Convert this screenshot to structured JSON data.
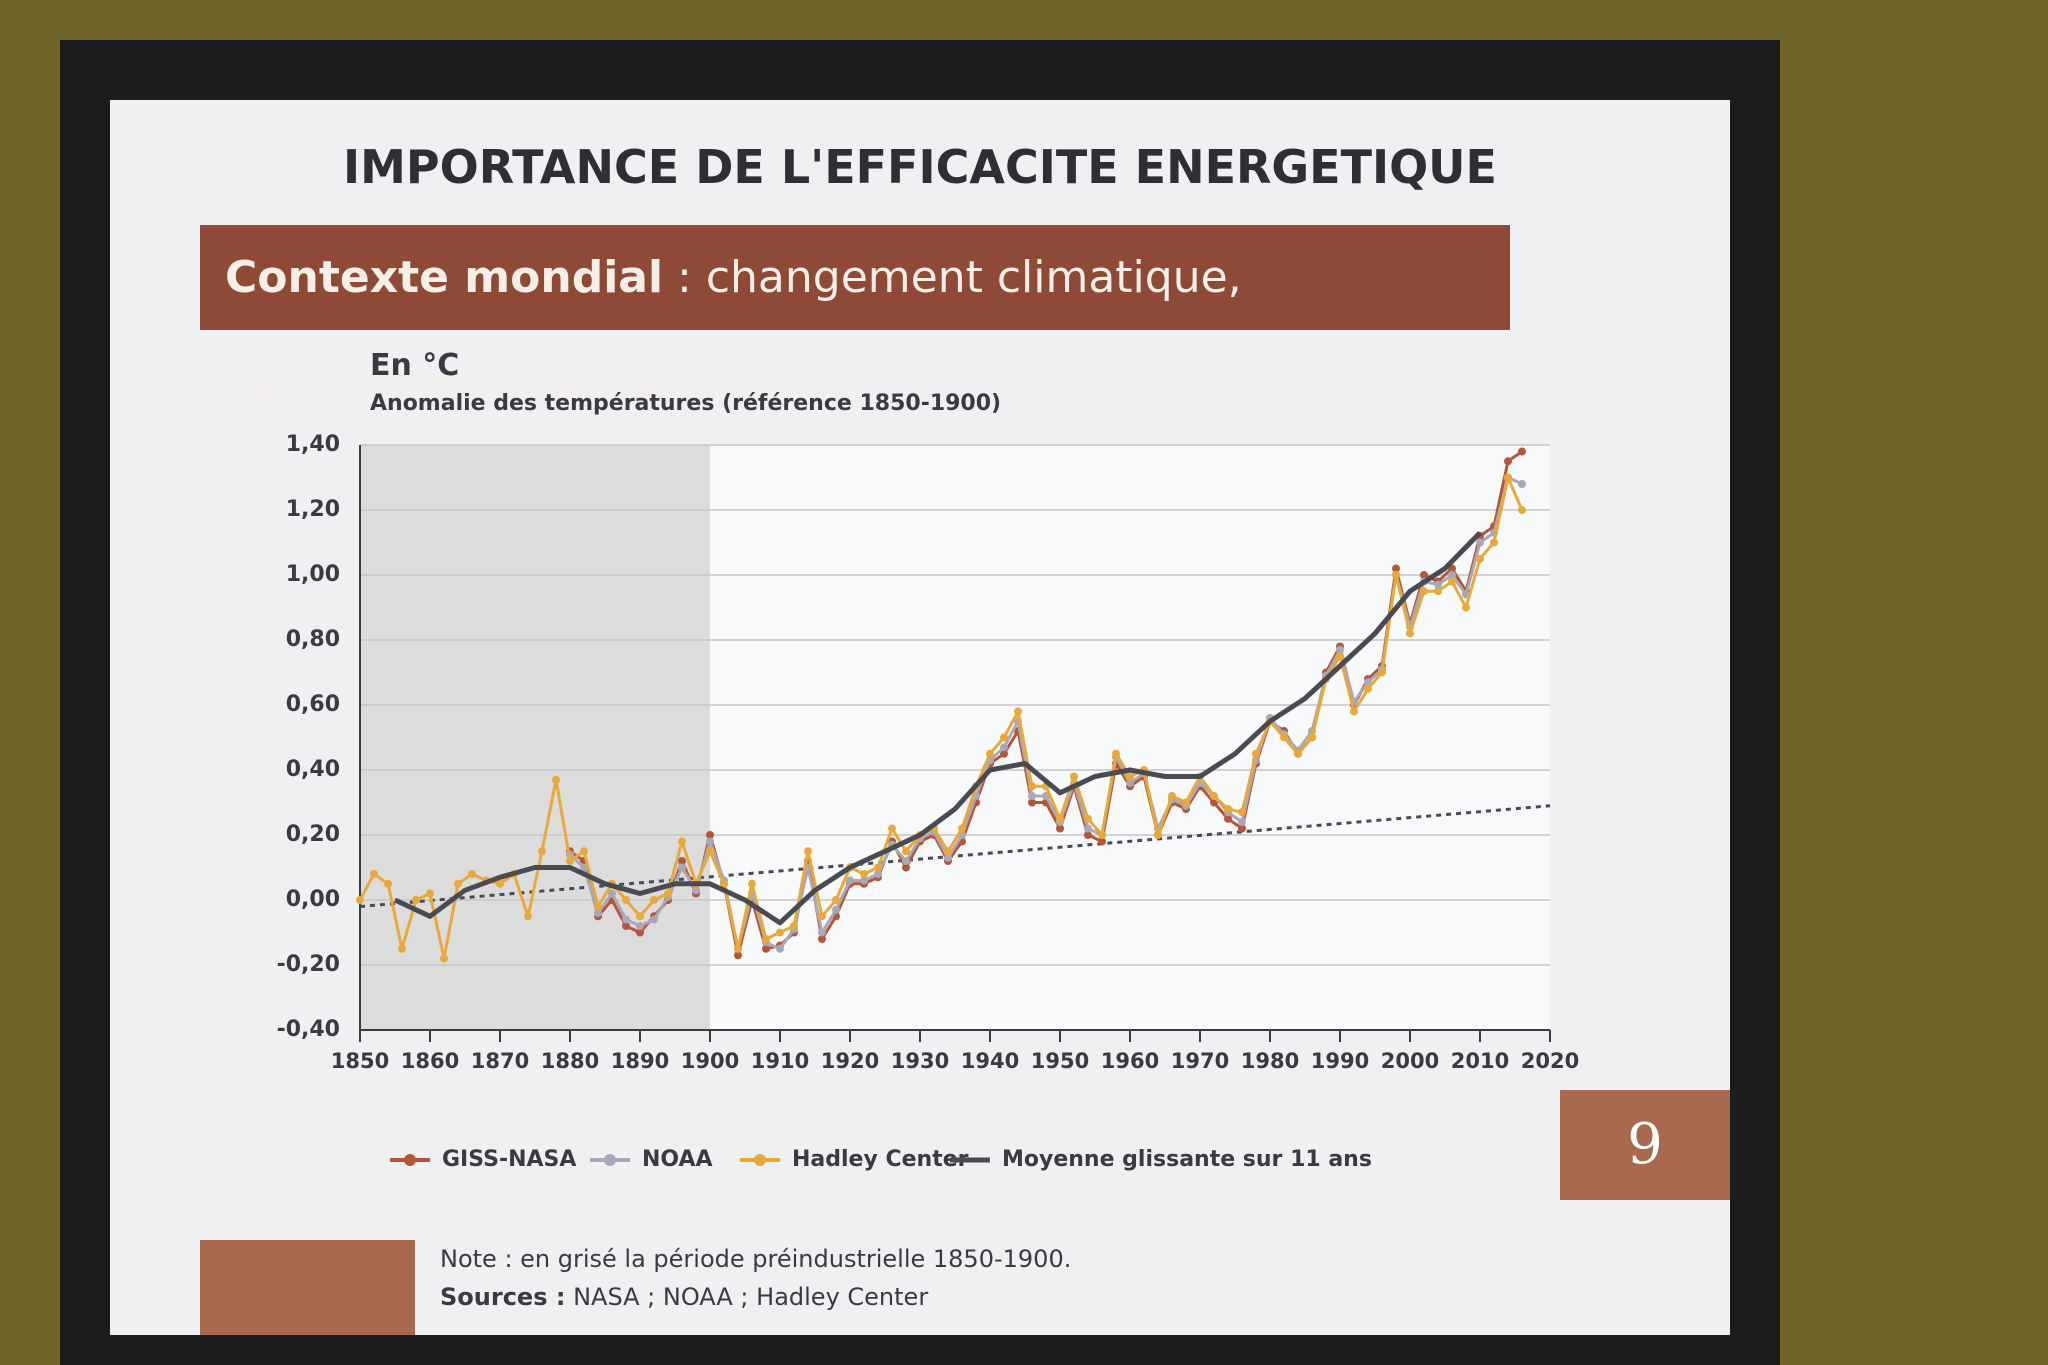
{
  "slide": {
    "title": "IMPORTANCE DE L'EFFICACITE ENERGETIQUE",
    "banner_bold": "Contexte mondial",
    "banner_rest": " : changement climatique, épuisement des ressources",
    "note": "Note : en grisé la période préindustrielle 1850-1900.",
    "sources_bold": "Sources :",
    "sources_rest": " NASA ; NOAA ; Hadley Center",
    "page_number": "9"
  },
  "chart_data": {
    "type": "line",
    "title": "En °C",
    "subtitle": "Anomalie des températures (référence 1850-1900)",
    "xlim": [
      1850,
      2020
    ],
    "xticks": [
      1850,
      1860,
      1870,
      1880,
      1890,
      1900,
      1910,
      1920,
      1930,
      1940,
      1950,
      1960,
      1970,
      1980,
      1990,
      2000,
      2010,
      2020
    ],
    "ylim": [
      -0.4,
      1.4
    ],
    "yticks": [
      {
        "value": -0.4,
        "label": "-0,40"
      },
      {
        "value": -0.2,
        "label": "-0,20"
      },
      {
        "value": 0,
        "label": "0,00"
      },
      {
        "value": 0.2,
        "label": "0,20"
      },
      {
        "value": 0.4,
        "label": "0,40"
      },
      {
        "value": 0.6,
        "label": "0,60"
      },
      {
        "value": 0.8,
        "label": "0,80"
      },
      {
        "value": 1,
        "label": "1,00"
      },
      {
        "value": 1.2,
        "label": "1,20"
      },
      {
        "value": 1.4,
        "label": "1,40"
      }
    ],
    "grid": true,
    "shaded_period": [
      1850,
      1900
    ],
    "shade_color": "#dcdcdc",
    "trend_line": {
      "x": [
        1850,
        2020
      ],
      "values": [
        -0.02,
        0.29
      ],
      "color": "#4a4a52"
    },
    "series": [
      {
        "name": "GISS-NASA",
        "color": "#b5563a",
        "markers": true,
        "x": [
          1880,
          1882,
          1884,
          1886,
          1888,
          1890,
          1892,
          1894,
          1896,
          1898,
          1900,
          1902,
          1904,
          1906,
          1908,
          1910,
          1912,
          1914,
          1916,
          1918,
          1920,
          1922,
          1924,
          1926,
          1928,
          1930,
          1932,
          1934,
          1936,
          1938,
          1940,
          1942,
          1944,
          1946,
          1948,
          1950,
          1952,
          1954,
          1956,
          1958,
          1960,
          1962,
          1964,
          1966,
          1968,
          1970,
          1972,
          1974,
          1976,
          1978,
          1980,
          1982,
          1984,
          1986,
          1988,
          1990,
          1992,
          1994,
          1996,
          1998,
          2000,
          2002,
          2004,
          2006,
          2008,
          2010,
          2012,
          2014,
          2016
        ],
        "values": [
          0.15,
          0.12,
          -0.05,
          0.0,
          -0.08,
          -0.1,
          -0.05,
          0.0,
          0.12,
          0.02,
          0.2,
          0.05,
          -0.17,
          0.0,
          -0.15,
          -0.14,
          -0.1,
          0.12,
          -0.12,
          -0.05,
          0.05,
          0.05,
          0.07,
          0.18,
          0.1,
          0.18,
          0.2,
          0.12,
          0.18,
          0.3,
          0.42,
          0.45,
          0.52,
          0.3,
          0.3,
          0.22,
          0.35,
          0.2,
          0.18,
          0.42,
          0.35,
          0.38,
          0.2,
          0.3,
          0.28,
          0.35,
          0.3,
          0.25,
          0.22,
          0.42,
          0.55,
          0.52,
          0.45,
          0.5,
          0.7,
          0.78,
          0.6,
          0.68,
          0.72,
          1.02,
          0.85,
          1.0,
          0.98,
          1.02,
          0.95,
          1.12,
          1.15,
          1.35,
          1.38
        ]
      },
      {
        "name": "NOAA",
        "color": "#a8a8b8",
        "markers": true,
        "x": [
          1880,
          1882,
          1884,
          1886,
          1888,
          1890,
          1892,
          1894,
          1896,
          1898,
          1900,
          1902,
          1904,
          1906,
          1908,
          1910,
          1912,
          1914,
          1916,
          1918,
          1920,
          1922,
          1924,
          1926,
          1928,
          1930,
          1932,
          1934,
          1936,
          1938,
          1940,
          1942,
          1944,
          1946,
          1948,
          1950,
          1952,
          1954,
          1956,
          1958,
          1960,
          1962,
          1964,
          1966,
          1968,
          1970,
          1972,
          1974,
          1976,
          1978,
          1980,
          1982,
          1984,
          1986,
          1988,
          1990,
          1992,
          1994,
          1996,
          1998,
          2000,
          2002,
          2004,
          2006,
          2008,
          2010,
          2012,
          2014,
          2016
        ],
        "values": [
          0.14,
          0.1,
          -0.04,
          0.02,
          -0.06,
          -0.08,
          -0.06,
          0.01,
          0.1,
          0.03,
          0.18,
          0.06,
          -0.15,
          0.02,
          -0.13,
          -0.15,
          -0.09,
          0.1,
          -0.1,
          -0.03,
          0.06,
          0.06,
          0.08,
          0.17,
          0.12,
          0.19,
          0.21,
          0.13,
          0.2,
          0.32,
          0.43,
          0.47,
          0.55,
          0.32,
          0.32,
          0.24,
          0.36,
          0.22,
          0.2,
          0.44,
          0.36,
          0.39,
          0.22,
          0.31,
          0.29,
          0.36,
          0.32,
          0.27,
          0.24,
          0.43,
          0.56,
          0.51,
          0.46,
          0.52,
          0.69,
          0.77,
          0.61,
          0.67,
          0.71,
          1.0,
          0.84,
          0.98,
          0.97,
          1.0,
          0.94,
          1.1,
          1.13,
          1.3,
          1.28
        ]
      },
      {
        "name": "Hadley Center",
        "color": "#e8a93a",
        "markers": true,
        "x": [
          1850,
          1852,
          1854,
          1856,
          1858,
          1860,
          1862,
          1864,
          1866,
          1868,
          1870,
          1872,
          1874,
          1876,
          1878,
          1880,
          1882,
          1884,
          1886,
          1888,
          1890,
          1892,
          1894,
          1896,
          1898,
          1900,
          1902,
          1904,
          1906,
          1908,
          1910,
          1912,
          1914,
          1916,
          1918,
          1920,
          1922,
          1924,
          1926,
          1928,
          1930,
          1932,
          1934,
          1936,
          1938,
          1940,
          1942,
          1944,
          1946,
          1948,
          1950,
          1952,
          1954,
          1956,
          1958,
          1960,
          1962,
          1964,
          1966,
          1968,
          1970,
          1972,
          1974,
          1976,
          1978,
          1980,
          1982,
          1984,
          1986,
          1988,
          1990,
          1992,
          1994,
          1996,
          1998,
          2000,
          2002,
          2004,
          2006,
          2008,
          2010,
          2012,
          2014,
          2016
        ],
        "values": [
          0.0,
          0.08,
          0.05,
          -0.15,
          0.0,
          0.02,
          -0.18,
          0.05,
          0.08,
          0.06,
          0.05,
          0.08,
          -0.05,
          0.15,
          0.37,
          0.12,
          0.15,
          -0.02,
          0.05,
          0.0,
          -0.05,
          0.0,
          0.02,
          0.18,
          0.05,
          0.15,
          0.05,
          -0.15,
          0.05,
          -0.12,
          -0.1,
          -0.08,
          0.15,
          -0.05,
          0.0,
          0.1,
          0.08,
          0.1,
          0.22,
          0.15,
          0.2,
          0.22,
          0.15,
          0.22,
          0.35,
          0.45,
          0.5,
          0.58,
          0.35,
          0.35,
          0.25,
          0.38,
          0.25,
          0.2,
          0.45,
          0.38,
          0.4,
          0.2,
          0.32,
          0.3,
          0.38,
          0.32,
          0.28,
          0.27,
          0.45,
          0.55,
          0.5,
          0.45,
          0.5,
          0.68,
          0.75,
          0.58,
          0.65,
          0.7,
          1.0,
          0.82,
          0.95,
          0.95,
          0.98,
          0.9,
          1.05,
          1.1,
          1.3,
          1.2
        ]
      },
      {
        "name": "Moyenne glissante sur 11 ans",
        "color": "#4a4a52",
        "markers": false,
        "x": [
          1855,
          1860,
          1865,
          1870,
          1875,
          1880,
          1885,
          1890,
          1895,
          1900,
          1905,
          1910,
          1915,
          1920,
          1925,
          1930,
          1935,
          1940,
          1945,
          1950,
          1955,
          1960,
          1965,
          1970,
          1975,
          1980,
          1985,
          1990,
          1995,
          2000,
          2005,
          2010
        ],
        "values": [
          0.0,
          -0.05,
          0.03,
          0.07,
          0.1,
          0.1,
          0.05,
          0.02,
          0.05,
          0.05,
          0.0,
          -0.07,
          0.03,
          0.1,
          0.15,
          0.2,
          0.28,
          0.4,
          0.42,
          0.33,
          0.38,
          0.4,
          0.38,
          0.38,
          0.45,
          0.55,
          0.62,
          0.72,
          0.82,
          0.95,
          1.02,
          1.13
        ]
      }
    ]
  }
}
